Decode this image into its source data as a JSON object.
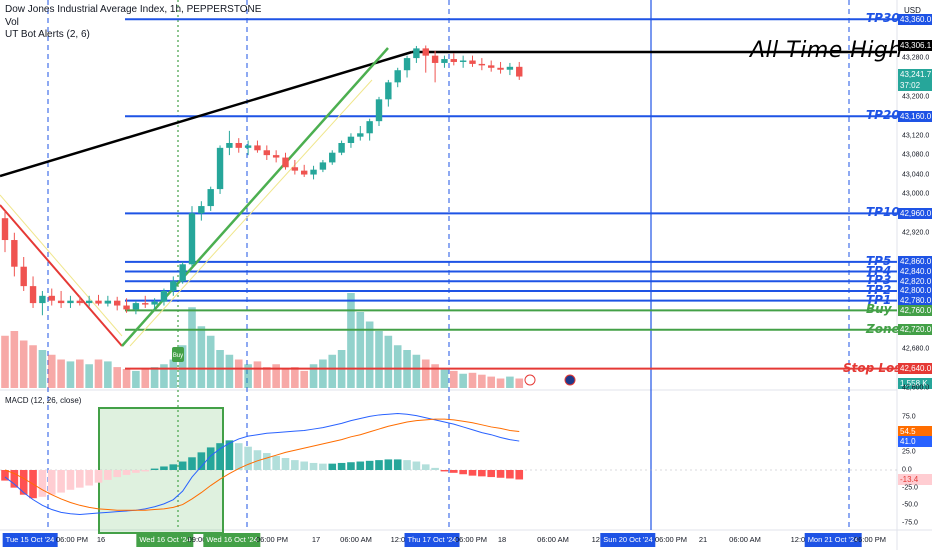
{
  "header": {
    "symbol": "Dow Jones Industrial Average Index, 1h, PEPPERSTONE",
    "vol": "Vol",
    "indicator": "UT Bot Alerts (2, 6)",
    "currency": "USD"
  },
  "annotation": {
    "all_time_high": "All Time High"
  },
  "macd_label": "MACD (12, 26, close)",
  "buy_marker": "Buy",
  "chart_data": {
    "type": "candlestick",
    "title": "Dow Jones Industrial Average Index, 1h, PEPPERSTONE",
    "price_ticks": [
      "43,280.0",
      "43,200.0",
      "43,120.0",
      "43,080.0",
      "43,040.0",
      "43,000.0",
      "42,920.0",
      "42,680.0",
      "42,600.0"
    ],
    "ylim": [
      42600,
      43375
    ],
    "levels": [
      {
        "label": "TP30",
        "value": 43360.0,
        "tag": "43,360.0",
        "color": "#1e53e5"
      },
      {
        "label": "TP20",
        "value": 43160.0,
        "tag": "43,160.0",
        "color": "#1e53e5"
      },
      {
        "label": "TP10",
        "value": 42960.0,
        "tag": "42,960.0",
        "color": "#1e53e5"
      },
      {
        "label": "TP5",
        "value": 42860.0,
        "tag": "42,860.0",
        "color": "#1e53e5"
      },
      {
        "label": "TP4",
        "value": 42840.0,
        "tag": "42,840.0",
        "color": "#1e53e5"
      },
      {
        "label": "TP3",
        "value": 42820.0,
        "tag": "42,820.0",
        "color": "#1e53e5"
      },
      {
        "label": "TP2",
        "value": 42800.0,
        "tag": "42,800.0",
        "color": "#1e53e5"
      },
      {
        "label": "TP1",
        "value": 42780.0,
        "tag": "42,780.0",
        "color": "#1e53e5"
      },
      {
        "label": "Buy",
        "value": 42760.0,
        "tag": "42,760.0",
        "color": "#43a047"
      },
      {
        "label": "Zone",
        "value": 42720.0,
        "tag": "42,720.0",
        "color": "#43a047"
      },
      {
        "label": "Stop Loss",
        "value": 42640.0,
        "tag": "42,640.0",
        "color": "#e53935"
      }
    ],
    "other_tags": {
      "ath": "43,306.1",
      "last_price": "43,241.7",
      "countdown": "37:02",
      "volume": "1.558 K",
      "macd_hist": "-13.4",
      "macd_signal": "54.5",
      "macd_line": "41.0"
    },
    "candles": [
      [
        42950,
        42965,
        42880,
        42905
      ],
      [
        42905,
        42920,
        42830,
        42850
      ],
      [
        42850,
        42870,
        42800,
        42810
      ],
      [
        42810,
        42830,
        42765,
        42775
      ],
      [
        42775,
        42800,
        42750,
        42790
      ],
      [
        42790,
        42805,
        42770,
        42780
      ],
      [
        42780,
        42800,
        42765,
        42775
      ],
      [
        42775,
        42790,
        42765,
        42780
      ],
      [
        42780,
        42790,
        42770,
        42775
      ],
      [
        42775,
        42790,
        42768,
        42780
      ],
      [
        42780,
        42792,
        42770,
        42774
      ],
      [
        42774,
        42790,
        42768,
        42780
      ],
      [
        42780,
        42788,
        42760,
        42770
      ],
      [
        42770,
        42785,
        42755,
        42762
      ],
      [
        42762,
        42780,
        42752,
        42775
      ],
      [
        42775,
        42790,
        42765,
        42772
      ],
      [
        42772,
        42785,
        42762,
        42778
      ],
      [
        42778,
        42805,
        42770,
        42800
      ],
      [
        42800,
        42830,
        42790,
        42820
      ],
      [
        42820,
        42860,
        42815,
        42855
      ],
      [
        42855,
        42975,
        42850,
        42960
      ],
      [
        42960,
        42985,
        42945,
        42975
      ],
      [
        42975,
        43015,
        42965,
        43010
      ],
      [
        43010,
        43100,
        43000,
        43095
      ],
      [
        43095,
        43130,
        43080,
        43105
      ],
      [
        43105,
        43115,
        43085,
        43095
      ],
      [
        43095,
        43110,
        43080,
        43100
      ],
      [
        43100,
        43110,
        43085,
        43090
      ],
      [
        43090,
        43100,
        43070,
        43080
      ],
      [
        43080,
        43090,
        43065,
        43075
      ],
      [
        43075,
        43085,
        43050,
        43055
      ],
      [
        43055,
        43070,
        43040,
        43048
      ],
      [
        43048,
        43060,
        43035,
        43040
      ],
      [
        43040,
        43058,
        43030,
        43050
      ],
      [
        43050,
        43070,
        43045,
        43065
      ],
      [
        43065,
        43090,
        43060,
        43085
      ],
      [
        43085,
        43110,
        43080,
        43105
      ],
      [
        43105,
        43125,
        43095,
        43118
      ],
      [
        43118,
        43140,
        43110,
        43125
      ],
      [
        43125,
        43155,
        43110,
        43150
      ],
      [
        43150,
        43200,
        43140,
        43195
      ],
      [
        43195,
        43235,
        43180,
        43230
      ],
      [
        43230,
        43260,
        43220,
        43255
      ],
      [
        43255,
        43285,
        43240,
        43280
      ],
      [
        43280,
        43305,
        43270,
        43300
      ],
      [
        43300,
        43306,
        43250,
        43285
      ],
      [
        43285,
        43295,
        43230,
        43270
      ],
      [
        43270,
        43285,
        43260,
        43278
      ],
      [
        43278,
        43290,
        43265,
        43272
      ],
      [
        43272,
        43285,
        43260,
        43275
      ],
      [
        43275,
        43285,
        43262,
        43268
      ],
      [
        43268,
        43280,
        43255,
        43265
      ],
      [
        43265,
        43275,
        43252,
        43260
      ],
      [
        43260,
        43272,
        43248,
        43256
      ],
      [
        43256,
        43270,
        43245,
        43262
      ],
      [
        43262,
        43272,
        43235,
        43242
      ]
    ],
    "volumes": [
      0.55,
      0.6,
      0.5,
      0.45,
      0.4,
      0.35,
      0.3,
      0.28,
      0.3,
      0.25,
      0.3,
      0.28,
      0.22,
      0.2,
      0.18,
      0.2,
      0.22,
      0.25,
      0.3,
      0.45,
      0.85,
      0.65,
      0.55,
      0.4,
      0.35,
      0.3,
      0.25,
      0.28,
      0.22,
      0.25,
      0.2,
      0.22,
      0.18,
      0.25,
      0.3,
      0.35,
      0.4,
      1.0,
      0.8,
      0.7,
      0.6,
      0.55,
      0.45,
      0.4,
      0.35,
      0.3,
      0.25,
      0.2,
      0.18,
      0.15,
      0.16,
      0.14,
      0.12,
      0.1,
      0.12,
      0.1
    ],
    "macd": {
      "yticks": [
        "75.0",
        "25.0",
        "0.0",
        "-25.0",
        "-50.0",
        "-75.0"
      ],
      "ylim": [
        -85,
        85
      ],
      "hist": [
        -15,
        -25,
        -35,
        -40,
        -38,
        -35,
        -32,
        -28,
        -25,
        -22,
        -18,
        -14,
        -10,
        -7,
        -4,
        -2,
        2,
        5,
        8,
        12,
        18,
        25,
        32,
        38,
        42,
        38,
        33,
        28,
        24,
        20,
        17,
        14,
        12,
        10,
        9,
        9,
        10,
        11,
        12,
        13,
        14,
        15,
        15,
        14,
        12,
        8,
        3,
        -2,
        -4,
        -6,
        -8,
        -9,
        -10,
        -11,
        -12,
        -13.4
      ],
      "macd_line": [
        -10,
        -20,
        -32,
        -42,
        -50,
        -56,
        -60,
        -62,
        -63,
        -62,
        -61,
        -60,
        -59,
        -58,
        -57,
        -55,
        -52,
        -48,
        -42,
        -30,
        -10,
        5,
        20,
        30,
        38,
        44,
        48,
        50,
        52,
        53,
        54,
        55,
        56,
        58,
        60,
        63,
        66,
        70,
        73,
        76,
        78,
        79,
        80,
        79,
        77,
        74,
        71,
        68,
        65,
        61,
        57,
        53,
        50,
        46,
        43,
        41
      ],
      "signal_line": [
        0,
        -5,
        -12,
        -20,
        -28,
        -35,
        -41,
        -46,
        -50,
        -53,
        -55,
        -56,
        -57,
        -57,
        -57,
        -57,
        -56,
        -55,
        -53,
        -49,
        -41,
        -32,
        -22,
        -13,
        -5,
        2,
        8,
        13,
        17,
        21,
        25,
        28,
        31,
        34,
        37,
        40,
        43,
        47,
        50,
        54,
        58,
        62,
        65,
        68,
        70,
        71,
        72,
        72,
        71,
        69,
        67,
        64,
        61,
        59,
        56,
        54.5
      ]
    },
    "time_labels": [
      {
        "text": "Tue 15 Oct '24",
        "highlight": true
      },
      {
        "text": "06:00 PM",
        "highlight": false
      },
      {
        "text": "16",
        "highlight": false
      },
      {
        "text": "Wed 16 Oct '24",
        "highlight": true
      },
      {
        "text": "09:00",
        "highlight": false
      },
      {
        "text": "Wed 16 Oct '24",
        "highlight": true
      },
      {
        "text": "06:00 PM",
        "highlight": false
      },
      {
        "text": "17",
        "highlight": false
      },
      {
        "text": "06:00 AM",
        "highlight": false
      },
      {
        "text": "12:00",
        "highlight": false
      },
      {
        "text": "Thu 17 Oct '24",
        "highlight": true
      },
      {
        "text": "06:00 PM",
        "highlight": false
      },
      {
        "text": "18",
        "highlight": false
      },
      {
        "text": "06:00 AM",
        "highlight": false
      },
      {
        "text": "12:00",
        "highlight": false
      },
      {
        "text": "Sun 20 Oct '24",
        "highlight": true
      },
      {
        "text": "06:00 PM",
        "highlight": false
      },
      {
        "text": "21",
        "highlight": false
      },
      {
        "text": "06:00 AM",
        "highlight": false
      },
      {
        "text": "12:00",
        "highlight": false
      },
      {
        "text": "Mon 21 Oct '24",
        "highlight": true
      },
      {
        "text": "06:00 PM",
        "highlight": false
      }
    ],
    "colors": {
      "up": "#26a69a",
      "down": "#ef5350",
      "level_blue": "#1e53e5",
      "buy_green": "#43a047",
      "stop_red": "#e53935"
    }
  }
}
